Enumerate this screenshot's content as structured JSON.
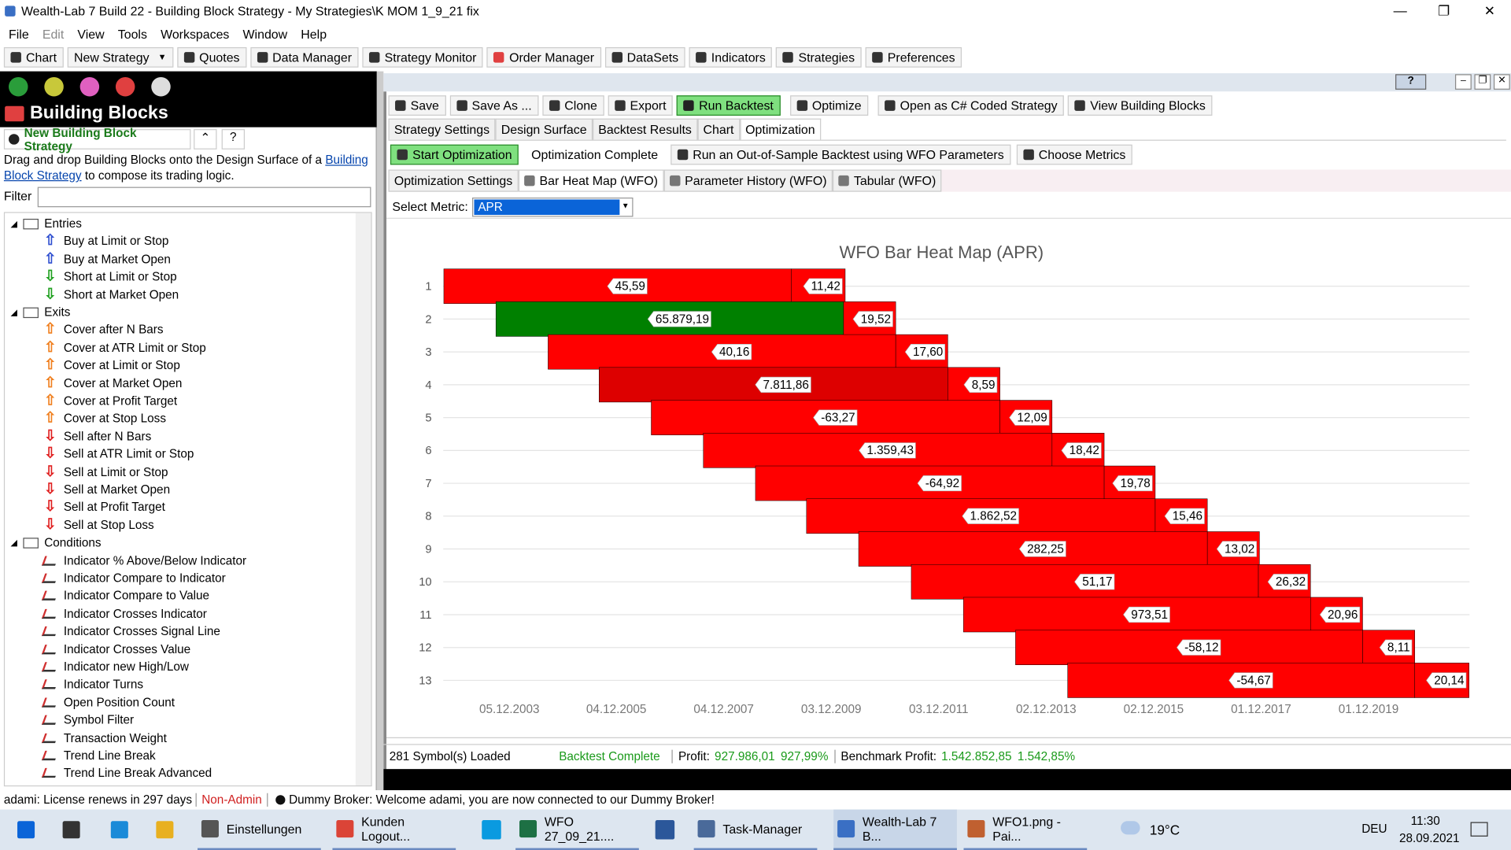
{
  "window": {
    "title": "Wealth-Lab 7 Build 22 - Building Block Strategy - My Strategies\\K MOM 1_9_21 fix",
    "help_button": "?"
  },
  "menu": [
    "File",
    "Edit",
    "View",
    "Tools",
    "Workspaces",
    "Window",
    "Help"
  ],
  "toolbar": [
    "Chart",
    "New Strategy",
    "Quotes",
    "Data Manager",
    "Strategy Monitor",
    "Order Manager",
    "DataSets",
    "Indicators",
    "Strategies",
    "Preferences"
  ],
  "left_panel": {
    "title": "Building Blocks",
    "new_button": "New Building Block Strategy",
    "hint_pre": "Drag and drop Building Blocks onto the Design Surface of a",
    "hint_link": "Building Block Strategy",
    "hint_post": "to compose its trading logic.",
    "filter_label": "Filter",
    "groups": [
      {
        "name": "Entries",
        "items": [
          "Buy at Limit or Stop",
          "Buy at Market Open",
          "Short at Limit or Stop",
          "Short at Market Open"
        ]
      },
      {
        "name": "Exits",
        "items": [
          "Cover after N Bars",
          "Cover at ATR Limit or Stop",
          "Cover at Limit or Stop",
          "Cover at Market Open",
          "Cover at Profit Target",
          "Cover at Stop Loss",
          "Sell after N Bars",
          "Sell at ATR Limit or Stop",
          "Sell at Limit or Stop",
          "Sell at Market Open",
          "Sell at Profit Target",
          "Sell at Stop Loss"
        ]
      },
      {
        "name": "Conditions",
        "items": [
          "Indicator % Above/Below Indicator",
          "Indicator Compare to Indicator",
          "Indicator Compare to Value",
          "Indicator Crosses Indicator",
          "Indicator Crosses Signal Line",
          "Indicator Crosses Value",
          "Indicator new High/Low",
          "Indicator Turns",
          "Open Position Count",
          "Symbol Filter",
          "Transaction Weight",
          "Trend Line Break",
          "Trend Line Break Advanced"
        ]
      }
    ]
  },
  "strategy_toolbar": [
    "Save",
    "Save As ...",
    "Clone",
    "Export",
    "Run Backtest",
    "Optimize",
    "Open as C# Coded Strategy",
    "View Building Blocks"
  ],
  "tabs": [
    "Strategy Settings",
    "Design Surface",
    "Backtest Results",
    "Chart",
    "Optimization"
  ],
  "opt_toolbar": [
    "Start Optimization",
    "Optimization Complete",
    "Run an Out-of-Sample Backtest using WFO Parameters",
    "Choose Metrics"
  ],
  "opt_tabs": [
    "Optimization Settings",
    "Bar Heat Map (WFO)",
    "Parameter History (WFO)",
    "Tabular (WFO)"
  ],
  "metric": {
    "label": "Select Metric:",
    "value": "APR"
  },
  "chart_data": {
    "type": "bar",
    "orientation": "horizontal",
    "title": "WFO Bar Heat Map (APR)",
    "categories": [
      "1",
      "2",
      "3",
      "4",
      "5",
      "6",
      "7",
      "8",
      "9",
      "10",
      "11",
      "12",
      "13"
    ],
    "xlim": [
      2002.7,
      2021.8
    ],
    "xticks": [
      {
        "value": 2003.93,
        "label": "05.12.2003"
      },
      {
        "value": 2005.92,
        "label": "04.12.2005"
      },
      {
        "value": 2007.92,
        "label": "04.12.2007"
      },
      {
        "value": 2009.92,
        "label": "03.12.2009"
      },
      {
        "value": 2011.92,
        "label": "03.12.2011"
      },
      {
        "value": 2013.92,
        "label": "02.12.2013"
      },
      {
        "value": 2015.92,
        "label": "02.12.2015"
      },
      {
        "value": 2017.92,
        "label": "01.12.2017"
      },
      {
        "value": 2019.92,
        "label": "01.12.2019"
      }
    ],
    "grid": true,
    "in_sample": {
      "start": [
        2002.71,
        2003.68,
        2004.65,
        2005.6,
        2006.57,
        2007.54,
        2008.51,
        2009.46,
        2010.43,
        2011.41,
        2012.38,
        2013.35,
        2014.32
      ],
      "end": [
        2009.18,
        2010.15,
        2011.12,
        2012.09,
        2013.06,
        2014.03,
        2015.0,
        2015.95,
        2016.92,
        2017.87,
        2018.84,
        2019.81,
        2020.78
      ],
      "values": [
        45.59,
        65879.19,
        40.16,
        7811.86,
        -63.27,
        1359.43,
        -64.92,
        1862.52,
        282.25,
        51.17,
        973.51,
        -58.12,
        -54.67
      ],
      "value_labels": [
        "45,59",
        "65.879,19",
        "40,16",
        "7.811,86",
        "-63,27",
        "1.359,43",
        "-64,92",
        "1.862,52",
        "282,25",
        "51,17",
        "973,51",
        "-58,12",
        "-54,67"
      ],
      "colors": [
        "#ff0000",
        "#008000",
        "#ff0000",
        "#dd0000",
        "#ff0000",
        "#ff0000",
        "#ff0000",
        "#ff0000",
        "#ff0000",
        "#ff0000",
        "#ff0000",
        "#ff0000",
        "#ff0000"
      ]
    },
    "out_of_sample": {
      "start": [
        2009.18,
        2010.15,
        2011.12,
        2012.09,
        2013.06,
        2014.03,
        2015.0,
        2015.95,
        2016.92,
        2017.87,
        2018.84,
        2019.81,
        2020.78
      ],
      "end": [
        2010.18,
        2011.12,
        2012.09,
        2013.06,
        2014.03,
        2015.0,
        2015.95,
        2016.92,
        2017.89,
        2018.84,
        2019.81,
        2020.78,
        2021.79
      ],
      "values": [
        11.42,
        19.52,
        17.6,
        8.59,
        12.09,
        18.42,
        19.78,
        15.46,
        13.02,
        26.32,
        20.96,
        8.11,
        20.14
      ],
      "value_labels": [
        "11,42",
        "19,52",
        "17,60",
        "8,59",
        "12,09",
        "18,42",
        "19,78",
        "15,46",
        "13,02",
        "26,32",
        "20,96",
        "8,11",
        "20,14"
      ],
      "color": "#ff0000"
    }
  },
  "status": {
    "symbols": "281 Symbol(s) Loaded",
    "backtest": "Backtest Complete",
    "profit_label": "Profit:",
    "profit": "927.986,01",
    "profit_pct": "927,99%",
    "bench_label": "Benchmark Profit:",
    "bench": "1.542.852,85",
    "bench_pct": "1.542,85%"
  },
  "footer": {
    "license": "adami: License renews in 297 days",
    "role": "Non-Admin",
    "broker": "Dummy Broker: Welcome adami, you are now connected to our Dummy Broker!"
  },
  "taskbar": {
    "items": [
      "Einstellungen",
      "Kunden Logout...",
      "WFO 27_09_21....",
      "Task-Manager",
      "Wealth-Lab 7 B...",
      "WFO1.png - Pai..."
    ],
    "temp": "19°C",
    "lang": "DEU",
    "time": "11:30",
    "date": "28.09.2021"
  }
}
